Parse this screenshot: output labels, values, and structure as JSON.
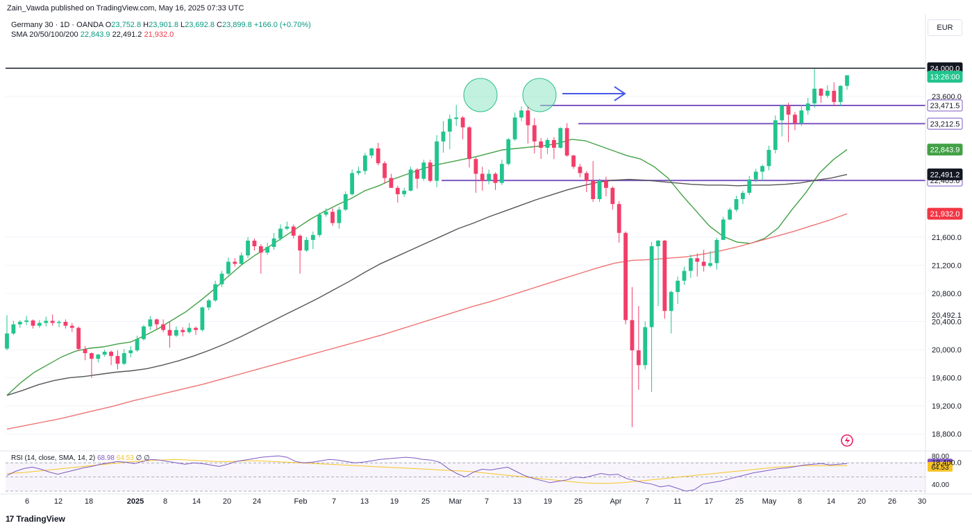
{
  "header": {
    "published": "Zain_Vawda published on TradingView.com, May 16, 2025 07:33 UTC",
    "symbol": "Germany 30 · 1D · OANDA",
    "ohlc": {
      "o": "23,752.8",
      "h": "23,901.8",
      "l": "23,692.8",
      "c": "23,899.8",
      "chg": "+166.0 (+0.70%)"
    },
    "sma_label": "SMA 20/50/100/200",
    "sma_values": {
      "v1": "22,843.9",
      "v2": "22,491.2",
      "v3": "21,932.0"
    },
    "currency": "EUR"
  },
  "rsi_header": {
    "label": "RSI (14, close, SMA, 14, 2)",
    "v1": "68.98",
    "v2": "64.53",
    "v3": "∅ ∅"
  },
  "footer": {
    "brand": "TradingView",
    "logo_mark": "17"
  },
  "colors": {
    "up": "#22c48e",
    "down": "#f23e6a",
    "sma20": "#43a047",
    "sma50": "#555555",
    "sma200": "#ef7272",
    "level": "#7e57c2",
    "arrow": "#4658e8",
    "circle": "#8fe6c4",
    "rsi": "#7e57c2",
    "rsima": "#f7c325"
  },
  "chart_data": {
    "type": "candlestick",
    "ylim": [
      18600,
      24300
    ],
    "y_ticks": [
      "23,600.0",
      "21,600.0",
      "21,200.0",
      "20,800.0",
      "20,400.0",
      "20,000.0",
      "19,600.0",
      "19,200.0",
      "18,800.0",
      "18,400.0"
    ],
    "x_ticks": [
      "6",
      "12",
      "18",
      "2025",
      "8",
      "14",
      "20",
      "24",
      "Feb",
      "7",
      "13",
      "19",
      "25",
      "Mar",
      "7",
      "13",
      "19",
      "25",
      "Apr",
      "7",
      "11",
      "17",
      "25",
      "May",
      "8",
      "14",
      "20",
      "26",
      "30"
    ],
    "candles": [
      [
        20015,
        20230,
        20490,
        19990
      ],
      [
        20230,
        20360,
        20410,
        20210
      ],
      [
        20360,
        20395,
        20420,
        20310
      ],
      [
        20395,
        20415,
        20480,
        20350
      ],
      [
        20415,
        20340,
        20430,
        20300
      ],
      [
        20340,
        20380,
        20420,
        20310
      ],
      [
        20380,
        20410,
        20470,
        20330
      ],
      [
        20410,
        20380,
        20500,
        20340
      ],
      [
        20380,
        20395,
        20420,
        20320
      ],
      [
        20395,
        20340,
        20430,
        20300
      ],
      [
        20340,
        20310,
        20380,
        20250
      ],
      [
        20310,
        20010,
        20330,
        19980
      ],
      [
        20010,
        19950,
        20050,
        19850
      ],
      [
        19950,
        19870,
        19960,
        19600
      ],
      [
        19870,
        19930,
        19940,
        19820
      ],
      [
        19930,
        19970,
        20000,
        19900
      ],
      [
        19970,
        19910,
        19990,
        19780
      ],
      [
        19910,
        19800,
        19990,
        19720
      ],
      [
        19800,
        19950,
        20010,
        19780
      ],
      [
        19950,
        19990,
        20050,
        19890
      ],
      [
        19990,
        20150,
        20200,
        19970
      ],
      [
        20150,
        20330,
        20350,
        20130
      ],
      [
        20330,
        20430,
        20480,
        20280
      ],
      [
        20430,
        20360,
        20440,
        20290
      ],
      [
        20360,
        20280,
        20430,
        20250
      ],
      [
        20280,
        20200,
        20400,
        20030
      ],
      [
        20200,
        20280,
        20330,
        20180
      ],
      [
        20280,
        20250,
        20320,
        20190
      ],
      [
        20250,
        20310,
        20380,
        20230
      ],
      [
        20310,
        20280,
        20330,
        20210
      ],
      [
        20280,
        20600,
        20610,
        20260
      ],
      [
        20600,
        20700,
        20720,
        20560
      ],
      [
        20700,
        20930,
        20980,
        20680
      ],
      [
        20930,
        21080,
        21120,
        20890
      ],
      [
        21080,
        21250,
        21310,
        21060
      ],
      [
        21250,
        21220,
        21300,
        21180
      ],
      [
        21220,
        21340,
        21380,
        21200
      ],
      [
        21340,
        21550,
        21600,
        21300
      ],
      [
        21550,
        21470,
        21580,
        21410
      ],
      [
        21470,
        21380,
        21500,
        21080
      ],
      [
        21380,
        21460,
        21520,
        21350
      ],
      [
        21460,
        21580,
        21660,
        21420
      ],
      [
        21580,
        21720,
        21780,
        21550
      ],
      [
        21720,
        21750,
        21820,
        21700
      ],
      [
        21750,
        21620,
        21780,
        21580
      ],
      [
        21620,
        21410,
        21640,
        21080
      ],
      [
        21410,
        21560,
        21600,
        21390
      ],
      [
        21560,
        21630,
        21680,
        21430
      ],
      [
        21630,
        21920,
        21950,
        21600
      ],
      [
        21920,
        21960,
        22010,
        21890
      ],
      [
        21960,
        21800,
        22010,
        21760
      ],
      [
        21800,
        21990,
        22030,
        21720
      ],
      [
        21990,
        22210,
        22250,
        21970
      ],
      [
        22210,
        22510,
        22560,
        22190
      ],
      [
        22510,
        22540,
        22600,
        22480
      ],
      [
        22540,
        22760,
        22800,
        22490
      ],
      [
        22760,
        22860,
        22870,
        22720
      ],
      [
        22860,
        22650,
        22940,
        22620
      ],
      [
        22650,
        22440,
        22680,
        22360
      ],
      [
        22440,
        22300,
        22500,
        22300
      ],
      [
        22300,
        22210,
        22330,
        22090
      ],
      [
        22210,
        22260,
        22300,
        22170
      ],
      [
        22260,
        22560,
        22600,
        22250
      ],
      [
        22560,
        22430,
        22580,
        22290
      ],
      [
        22430,
        22660,
        22700,
        22400
      ],
      [
        22660,
        22400,
        22700,
        22380
      ],
      [
        22400,
        22960,
        23050,
        22310
      ],
      [
        22960,
        23100,
        23250,
        22800
      ],
      [
        23100,
        23280,
        23340,
        22850
      ],
      [
        23280,
        23300,
        23480,
        23180
      ],
      [
        23300,
        23160,
        23320,
        22990
      ],
      [
        23160,
        22710,
        23180,
        22590
      ],
      [
        22710,
        22500,
        22740,
        22230
      ],
      [
        22500,
        22400,
        22600,
        22260
      ],
      [
        22400,
        22500,
        22560,
        22350
      ],
      [
        22500,
        22370,
        22520,
        22270
      ],
      [
        22370,
        22640,
        22700,
        22340
      ],
      [
        22640,
        22990,
        23010,
        22620
      ],
      [
        22990,
        23300,
        23370,
        22970
      ],
      [
        23300,
        23400,
        23460,
        23250
      ],
      [
        23400,
        23190,
        23460,
        22930
      ],
      [
        23190,
        22960,
        23290,
        22790
      ],
      [
        22960,
        22870,
        23010,
        22710
      ],
      [
        22870,
        22980,
        23010,
        22780
      ],
      [
        22980,
        22870,
        23020,
        22710
      ],
      [
        22870,
        23150,
        23160,
        22860
      ],
      [
        23150,
        22760,
        23220,
        22740
      ],
      [
        22760,
        22600,
        22770,
        22570
      ],
      [
        22600,
        22510,
        22640,
        22450
      ],
      [
        22510,
        22400,
        22540,
        22240
      ],
      [
        22400,
        22140,
        22680,
        22100
      ],
      [
        22140,
        22400,
        22430,
        22100
      ],
      [
        22400,
        22300,
        22460,
        22180
      ],
      [
        22300,
        22070,
        22320,
        21990
      ],
      [
        22070,
        21660,
        22110,
        21520
      ],
      [
        21660,
        20420,
        21680,
        20360
      ],
      [
        20420,
        19990,
        20890,
        18900
      ],
      [
        19990,
        19780,
        20620,
        19430
      ],
      [
        19780,
        20320,
        20400,
        19720
      ],
      [
        20320,
        21470,
        21530,
        19400
      ],
      [
        21470,
        21550,
        21560,
        20620
      ],
      [
        21550,
        20550,
        21560,
        20440
      ],
      [
        20550,
        20820,
        20840,
        20230
      ],
      [
        20820,
        20980,
        21040,
        20650
      ],
      [
        20980,
        21120,
        21180,
        20920
      ],
      [
        21120,
        21300,
        21350,
        21020
      ],
      [
        21300,
        21250,
        21370,
        21040
      ],
      [
        21250,
        21190,
        21420,
        21110
      ],
      [
        21190,
        21230,
        21400,
        21170
      ],
      [
        21230,
        21560,
        21590,
        21140
      ],
      [
        21560,
        21850,
        21890,
        21820
      ],
      [
        21850,
        21990,
        22020,
        21840
      ],
      [
        21990,
        22140,
        22190,
        21960
      ],
      [
        22140,
        22230,
        22260,
        22070
      ],
      [
        22230,
        22420,
        22470,
        22200
      ],
      [
        22420,
        22530,
        22570,
        22380
      ],
      [
        22530,
        22610,
        22630,
        22400
      ],
      [
        22610,
        22840,
        22900,
        22550
      ],
      [
        22840,
        23260,
        23330,
        22790
      ],
      [
        23260,
        23470,
        23480,
        23030
      ],
      [
        23470,
        23340,
        23510,
        22950
      ],
      [
        23340,
        23220,
        23380,
        23120
      ],
      [
        23220,
        23400,
        23480,
        23180
      ],
      [
        23400,
        23500,
        23580,
        23340
      ],
      [
        23500,
        23710,
        23990,
        23440
      ],
      [
        23710,
        23610,
        23720,
        23510
      ],
      [
        23610,
        23680,
        23760,
        23580
      ],
      [
        23680,
        23520,
        23800,
        23460
      ],
      [
        23520,
        23750,
        23760,
        23460
      ],
      [
        23750,
        23900,
        23902,
        23693
      ]
    ],
    "series": [
      {
        "name": "SMA 20",
        "last": "22,843.9",
        "values": [
          19350,
          19530,
          19680,
          19790,
          19900,
          19980,
          20020,
          20040,
          20080,
          20110,
          20200,
          20300,
          20420,
          20540,
          20690,
          20850,
          21030,
          21200,
          21340,
          21460,
          21590,
          21720,
          21850,
          21960,
          22060,
          22150,
          22260,
          22330,
          22420,
          22490,
          22560,
          22620,
          22660,
          22700,
          22740,
          22790,
          22840,
          22860,
          22880,
          22900,
          22930,
          22990,
          22970,
          22900,
          22830,
          22760,
          22710,
          22600,
          22440,
          22200,
          21980,
          21760,
          21610,
          21530,
          21510,
          21580,
          21730,
          21990,
          22230,
          22510,
          22700,
          22844
        ]
      },
      {
        "name": "SMA 50",
        "last": "22,491.2",
        "values": [
          19350,
          19420,
          19500,
          19560,
          19600,
          19620,
          19650,
          19680,
          19700,
          19730,
          19780,
          19840,
          19910,
          19990,
          20080,
          20180,
          20290,
          20400,
          20510,
          20620,
          20730,
          20850,
          20970,
          21100,
          21220,
          21320,
          21420,
          21520,
          21620,
          21720,
          21800,
          21890,
          21970,
          22050,
          22130,
          22200,
          22270,
          22330,
          22380,
          22410,
          22420,
          22410,
          22390,
          22370,
          22350,
          22340,
          22340,
          22330,
          22340,
          22340,
          22350,
          22370,
          22410,
          22440,
          22491
        ]
      },
      {
        "name": "SMA 200",
        "last": "21,932.0",
        "values": [
          18870,
          18920,
          18970,
          19020,
          19080,
          19140,
          19200,
          19270,
          19330,
          19390,
          19450,
          19510,
          19580,
          19650,
          19720,
          19790,
          19860,
          19930,
          20000,
          20070,
          20140,
          20210,
          20290,
          20370,
          20450,
          20530,
          20610,
          20680,
          20760,
          20840,
          20920,
          21000,
          21080,
          21160,
          21230,
          21270,
          21280,
          21300,
          21320,
          21360,
          21410,
          21470,
          21540,
          21610,
          21680,
          21760,
          21840,
          21932
        ]
      }
    ],
    "levels": [
      {
        "label": "24,000.0",
        "value": 24000,
        "kind": "black"
      },
      {
        "label": "23,471.5",
        "value": 23471.5,
        "kind": "purple"
      },
      {
        "label": "23,212.5",
        "value": 23212.5,
        "kind": "purple"
      },
      {
        "label": "22,405.6",
        "value": 22405.6,
        "kind": "purple"
      }
    ],
    "price_tags": [
      {
        "label": "13:26:00",
        "value": 23899.8,
        "kind": "countdown"
      },
      {
        "label": "22,843.9",
        "value": 22843.9,
        "kind": "sma20"
      },
      {
        "label": "22,491.2",
        "value": 22491.2,
        "kind": "sma50"
      },
      {
        "label": "21,932.0",
        "value": 21932,
        "kind": "sma200"
      },
      {
        "label": "20,492.1",
        "value": 20492.1,
        "kind": "plain"
      }
    ],
    "rsi": {
      "ylim": [
        30,
        85
      ],
      "ticks": [
        "80.00",
        "40.00"
      ],
      "tags": [
        {
          "label": "68.98",
          "value": 68.98,
          "kind": "rsi"
        },
        {
          "label": "64.53",
          "value": 64.53,
          "kind": "rsima"
        }
      ],
      "rsi_values": [
        52,
        58,
        62,
        64,
        61,
        57,
        54,
        57,
        60,
        63,
        65,
        68,
        70,
        72,
        71,
        69,
        72,
        75,
        74,
        72,
        70,
        68,
        70,
        69,
        67,
        65,
        68,
        72,
        74,
        76,
        78,
        79,
        80,
        78,
        72,
        70,
        71,
        73,
        75,
        74,
        72,
        70,
        71,
        73,
        75,
        76,
        77,
        78,
        77,
        75,
        74,
        71,
        62,
        55,
        50,
        57,
        61,
        60,
        62,
        64,
        58,
        52,
        48,
        45,
        42,
        44,
        46,
        50,
        49,
        52,
        55,
        53,
        54,
        48,
        45,
        42,
        40,
        36,
        38,
        34,
        30,
        32,
        40,
        42,
        44,
        47,
        50,
        53,
        56,
        58,
        60,
        62,
        63,
        65,
        67,
        68,
        69,
        67,
        68,
        69
      ],
      "rsima_values": [
        55,
        56,
        58,
        60,
        62,
        64,
        66,
        68,
        70,
        72,
        73,
        74,
        75,
        74,
        73,
        72,
        72,
        73,
        73,
        72,
        71,
        70,
        69,
        68,
        67,
        66,
        65,
        64,
        63,
        62,
        61,
        60,
        59,
        58,
        56,
        54,
        52,
        50,
        48,
        46,
        44,
        42,
        41,
        41,
        42,
        44,
        46,
        48,
        50,
        52,
        54,
        56,
        58,
        60,
        62,
        64,
        65,
        66,
        66,
        66,
        66
      ]
    }
  }
}
